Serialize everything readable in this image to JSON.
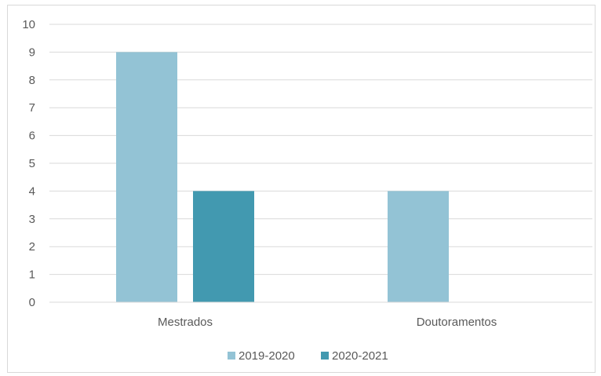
{
  "chart_data": {
    "type": "bar",
    "categories": [
      "Mestrados",
      "Doutoramentos"
    ],
    "series": [
      {
        "name": "2019-2020",
        "values": [
          9,
          4
        ],
        "color": "#93c3d5"
      },
      {
        "name": "2020-2021",
        "values": [
          4,
          0
        ],
        "color": "#4299b0"
      }
    ],
    "ylim": [
      0,
      10
    ],
    "yticks": [
      0,
      1,
      2,
      3,
      4,
      5,
      6,
      7,
      8,
      9,
      10
    ],
    "grid": true,
    "legend_position": "bottom"
  }
}
